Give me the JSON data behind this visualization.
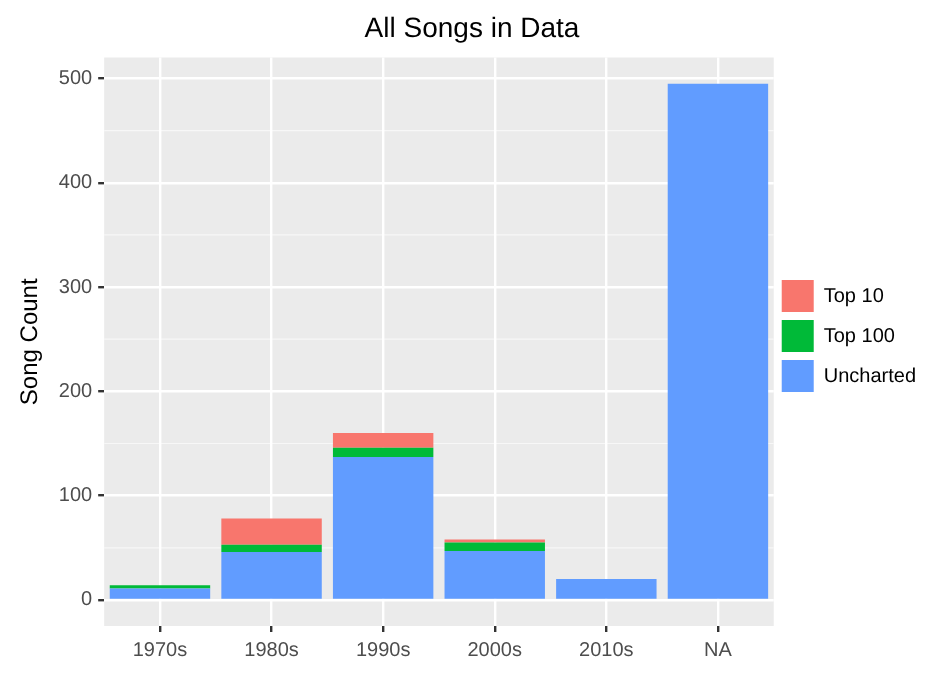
{
  "chart_data": {
    "type": "bar",
    "title": "All Songs in Data",
    "ylabel": "Song Count",
    "categories": [
      "1970s",
      "1980s",
      "1990s",
      "2000s",
      "2010s",
      "NA"
    ],
    "series": [
      {
        "name": "Uncharted",
        "color": "#619cff",
        "values": [
          11,
          46,
          137,
          47,
          20,
          495
        ]
      },
      {
        "name": "Top 100",
        "color": "#00ba38",
        "values": [
          3,
          7,
          9,
          8,
          0,
          0
        ]
      },
      {
        "name": "Top 10",
        "color": "#f8766d",
        "values": [
          0,
          25,
          14,
          3,
          0,
          0
        ]
      }
    ],
    "stacked": true,
    "ylim": [
      -25,
      520
    ],
    "yticks": [
      0,
      100,
      200,
      300,
      400,
      500
    ],
    "grid": true,
    "legend": "right"
  }
}
